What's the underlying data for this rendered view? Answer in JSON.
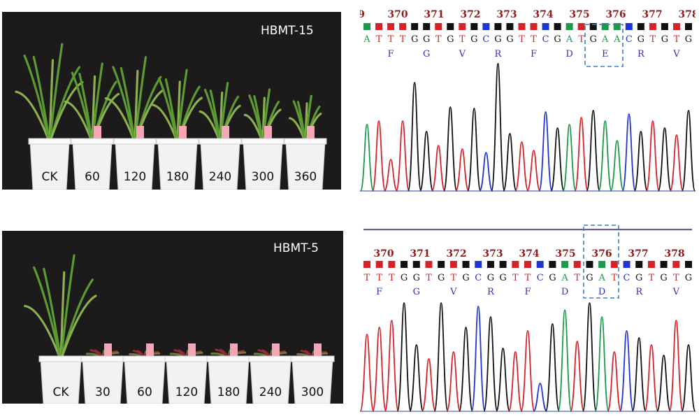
{
  "panels": [
    {
      "line": "HBMT-15",
      "doses": [
        "CK",
        "60",
        "120",
        "180",
        "240",
        "300",
        "360"
      ],
      "positions": [
        "9",
        "370",
        "371",
        "372",
        "373",
        "374",
        "375",
        "376",
        "377",
        "378"
      ],
      "bases": "ATTTGGTGTGCGGTTCGATGAACGTGTG",
      "amino_acids": [
        "F",
        "G",
        "V",
        "R",
        "F",
        "D",
        "E",
        "R",
        "V"
      ]
    },
    {
      "line": "HBMT-5",
      "doses": [
        "CK",
        "30",
        "60",
        "120",
        "180",
        "240",
        "300"
      ],
      "positions": [
        "370",
        "371",
        "372",
        "373",
        "374",
        "375",
        "376",
        "377",
        "378"
      ],
      "bases": "TTTGGTGTGCGGTTCGATGATCGTGTG",
      "amino_acids": [
        "F",
        "G",
        "V",
        "R",
        "F",
        "D",
        "D",
        "R",
        "V"
      ]
    }
  ],
  "colors": {
    "A": "#1a9a4a",
    "T": "#d8222a",
    "G": "#111111",
    "C": "#1f35d6",
    "highlight_box": "#3f7fc0",
    "photo_bg": "#1c1a1a",
    "pot": "#f2f2f2",
    "plant_green": "#5c9a32",
    "plant_red": "#8e2a3a"
  }
}
